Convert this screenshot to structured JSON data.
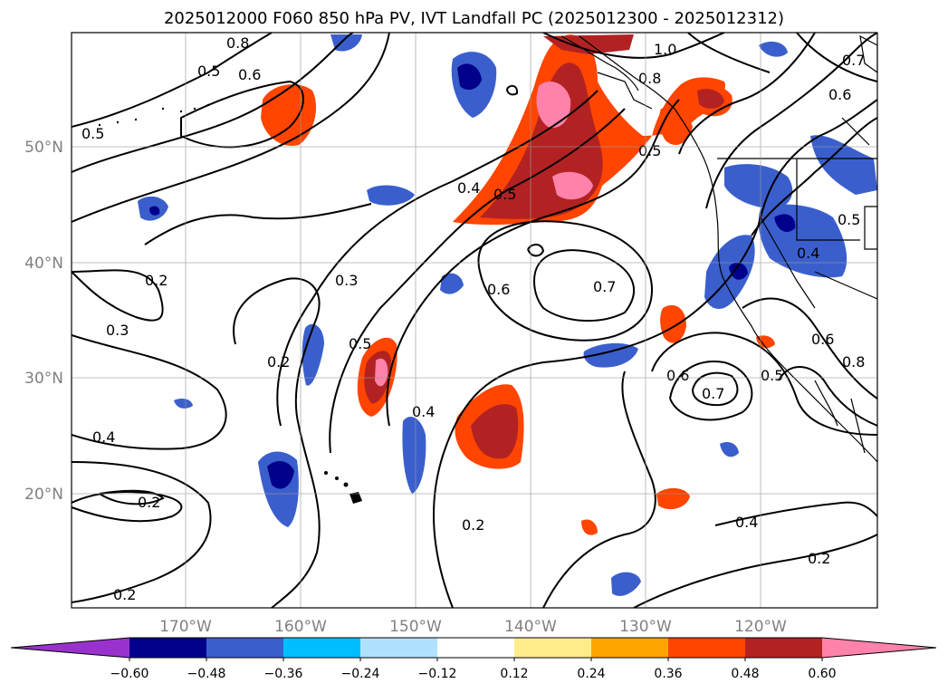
{
  "title": "2025012000 F060 850 hPa PV, IVT Landfall PC (2025012300 - 2025012312)",
  "lat_labels": [
    "50°N",
    "40°N",
    "30°N",
    "20°N"
  ],
  "lon_labels": [
    "170°W",
    "160°W",
    "150°W",
    "140°W",
    "130°W",
    "120°W"
  ],
  "colorbar": {
    "ticks": [
      "−0.60",
      "−0.48",
      "−0.36",
      "−0.24",
      "−0.12",
      "0.12",
      "0.24",
      "0.36",
      "0.48",
      "0.60"
    ],
    "colors": [
      "#9932cc",
      "#00008b",
      "#3a5fcd",
      "#00bfff",
      "#b0e2ff",
      "#ffffff",
      "#ffec8b",
      "#ffa500",
      "#ff4500",
      "#b22222",
      "#ff82ab"
    ]
  },
  "contour_labels": [
    "0.8",
    "0.5",
    "0.6",
    "0.5",
    "1.0",
    "0.8",
    "0.6",
    "0.7",
    "0.4",
    "0.5",
    "0.5",
    "0.2",
    "0.3",
    "0.6",
    "0.7",
    "0.4",
    "0.3",
    "0.5",
    "0.2",
    "0.4",
    "0.2",
    "0.6",
    "0.7",
    "0.5",
    "0.6",
    "0.8",
    "0.2",
    "0.4",
    "0.2",
    "0.2",
    "0.4",
    "0.5"
  ]
}
